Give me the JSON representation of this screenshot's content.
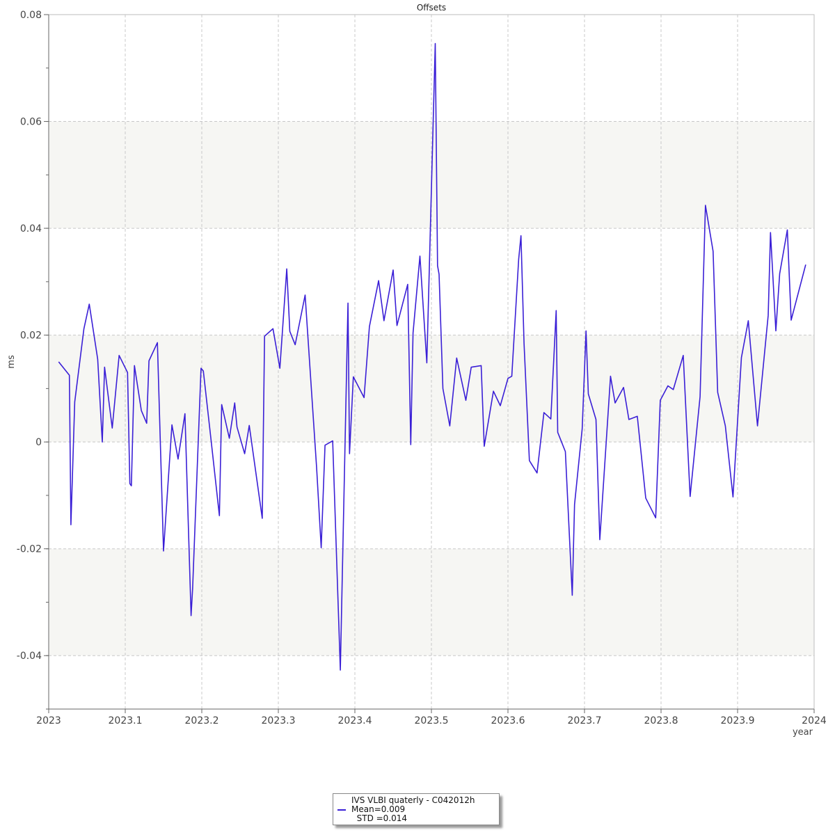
{
  "chart_data": {
    "type": "line",
    "title": "Offsets",
    "xlabel": "year",
    "ylabel": "ms",
    "xlim": [
      2023.0,
      2024.0
    ],
    "ylim": [
      -0.05,
      0.08
    ],
    "x_ticks": [
      2023,
      2023.1,
      2023.2,
      2023.3,
      2023.4,
      2023.5,
      2023.6,
      2023.7,
      2023.8,
      2023.9,
      2024
    ],
    "x_tick_labels": [
      "2023",
      "2023.1",
      "2023.2",
      "2023.3",
      "2023.4",
      "2023.5",
      "2023.6",
      "2023.7",
      "2023.8",
      "2023.9",
      "2024"
    ],
    "y_ticks": [
      -0.04,
      -0.02,
      0,
      0.02,
      0.04,
      0.06,
      0.08
    ],
    "y_tick_labels": [
      "-0.04",
      "-0.02",
      "0",
      "0.02",
      "0.04",
      "0.06",
      "0.08"
    ],
    "grid": true,
    "alternating_bands": true,
    "band_color": "#f6f6f3",
    "grid_color": "#c8c8c8",
    "legend_position": "bottom-center",
    "series": [
      {
        "name": "IVS VLBI quaterly - C042012h",
        "color": "#3a1fd6",
        "x": [
          2023.013,
          2023.027,
          2023.029,
          2023.034,
          2023.046,
          2023.053,
          2023.064,
          2023.07,
          2023.073,
          2023.083,
          2023.092,
          2023.103,
          2023.106,
          2023.108,
          2023.112,
          2023.121,
          2023.128,
          2023.131,
          2023.142,
          2023.15,
          2023.161,
          2023.169,
          2023.178,
          2023.186,
          2023.188,
          2023.199,
          2023.202,
          2023.212,
          2023.223,
          2023.226,
          2023.236,
          2023.243,
          2023.246,
          2023.256,
          2023.262,
          2023.279,
          2023.282,
          2023.293,
          2023.302,
          2023.311,
          2023.315,
          2023.322,
          2023.335,
          2023.35,
          2023.356,
          2023.361,
          2023.371,
          2023.381,
          2023.391,
          2023.393,
          2023.398,
          2023.412,
          2023.419,
          2023.431,
          2023.438,
          2023.45,
          2023.455,
          2023.469,
          2023.473,
          2023.476,
          2023.485,
          2023.494,
          2023.505,
          2023.508,
          2023.51,
          2023.515,
          2023.524,
          2023.533,
          2023.545,
          2023.552,
          2023.565,
          2023.569,
          2023.581,
          2023.59,
          2023.6,
          2023.605,
          2023.614,
          2023.617,
          2023.621,
          2023.628,
          2023.638,
          2023.647,
          2023.656,
          2023.663,
          2023.665,
          2023.675,
          2023.684,
          2023.687,
          2023.697,
          2023.702,
          2023.705,
          2023.715,
          2023.72,
          2023.734,
          2023.74,
          2023.751,
          2023.758,
          2023.769,
          2023.78,
          2023.793,
          2023.799,
          2023.809,
          2023.816,
          2023.829,
          2023.838,
          2023.851,
          2023.858,
          2023.868,
          2023.874,
          2023.884,
          2023.894,
          2023.905,
          2023.914,
          2023.926,
          2023.94,
          2023.943,
          2023.95,
          2023.955,
          2023.965,
          2023.97,
          2023.989
        ],
        "values": [
          0.015,
          0.0125,
          -0.0155,
          0.0075,
          0.0212,
          0.0258,
          0.0155,
          0.0,
          0.014,
          0.0026,
          0.0162,
          0.013,
          -0.0078,
          -0.0082,
          0.0143,
          0.0059,
          0.0035,
          0.0152,
          0.0186,
          -0.0204,
          0.0032,
          -0.0032,
          0.0053,
          -0.0325,
          -0.0275,
          0.0138,
          0.0133,
          0.0005,
          -0.0138,
          0.007,
          0.0007,
          0.0073,
          0.0028,
          -0.0022,
          0.0031,
          -0.0143,
          0.0198,
          0.0212,
          0.0138,
          0.0324,
          0.0207,
          0.0182,
          0.0275,
          -0.0048,
          -0.0198,
          -0.0006,
          0.0002,
          -0.0427,
          0.026,
          -0.0022,
          0.0122,
          0.0083,
          0.0216,
          0.0302,
          0.0227,
          0.0322,
          0.0218,
          0.0295,
          -0.0005,
          0.0204,
          0.0348,
          0.0148,
          0.0746,
          0.033,
          0.0314,
          0.01,
          0.003,
          0.0157,
          0.0078,
          0.014,
          0.0143,
          -0.0008,
          0.0095,
          0.0068,
          0.0119,
          0.0123,
          0.0342,
          0.0386,
          0.0185,
          -0.0035,
          -0.0058,
          0.0055,
          0.0043,
          0.0246,
          0.0018,
          -0.0018,
          -0.0287,
          -0.0117,
          0.0025,
          0.0208,
          0.009,
          0.0042,
          -0.0183,
          0.0123,
          0.0073,
          0.0102,
          0.0042,
          0.0048,
          -0.0105,
          -0.0142,
          0.0078,
          0.0105,
          0.0098,
          0.0162,
          -0.0102,
          0.0085,
          0.0443,
          0.0357,
          0.0093,
          0.003,
          -0.0103,
          0.0158,
          0.0227,
          0.003,
          0.0237,
          0.0392,
          0.0208,
          0.0315,
          0.0397,
          0.0228,
          0.0332
        ]
      }
    ]
  },
  "legend": {
    "line1": "IVS VLBI quaterly - C042012h",
    "line2": "Mean=0.009",
    "line3": "  STD =0.014"
  }
}
